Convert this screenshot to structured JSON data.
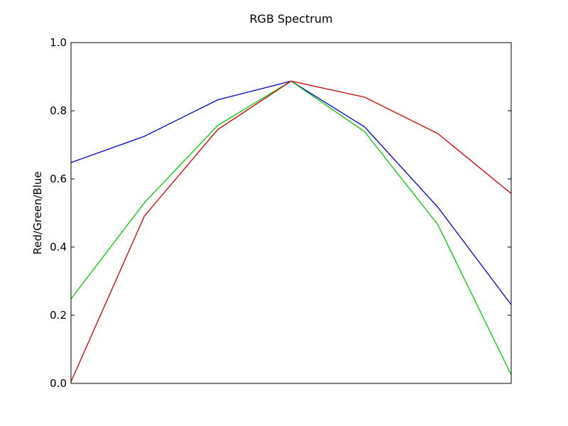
{
  "chart_data": {
    "type": "line",
    "title": "RGB Spectrum",
    "xlabel": "",
    "ylabel": "Red/Green/Blue",
    "x": [
      0,
      1,
      2,
      3,
      4,
      5,
      6
    ],
    "xlim": [
      0,
      6
    ],
    "ylim": [
      0,
      1
    ],
    "yticks": [
      "0.0",
      "0.2",
      "0.4",
      "0.6",
      "0.8",
      "1.0"
    ],
    "xticks_shown": false,
    "grid": false,
    "legend": "none",
    "series": [
      {
        "color": "#0000cc",
        "values": [
          0.648,
          0.725,
          0.832,
          0.887,
          0.753,
          0.517,
          0.231
        ]
      },
      {
        "color": "#00cc00",
        "values": [
          0.248,
          0.53,
          0.757,
          0.887,
          0.739,
          0.466,
          0.025
        ]
      },
      {
        "color": "#cc0000",
        "values": [
          0.005,
          0.491,
          0.745,
          0.887,
          0.84,
          0.733,
          0.557
        ]
      }
    ]
  }
}
